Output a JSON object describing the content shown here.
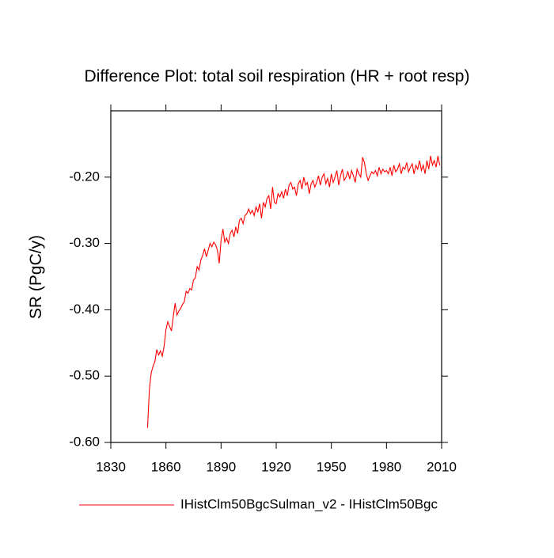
{
  "chart_data": {
    "type": "line",
    "title": "Difference Plot: total soil respiration (HR + root resp)",
    "y_label": "SR  (PgC/y)",
    "x": [
      1850,
      1851,
      1852,
      1853,
      1854,
      1855,
      1856,
      1857,
      1858,
      1859,
      1860,
      1861,
      1862,
      1863,
      1864,
      1865,
      1866,
      1867,
      1868,
      1869,
      1870,
      1871,
      1872,
      1873,
      1874,
      1875,
      1876,
      1877,
      1878,
      1879,
      1880,
      1881,
      1882,
      1883,
      1884,
      1885,
      1886,
      1887,
      1888,
      1889,
      1890,
      1891,
      1892,
      1893,
      1894,
      1895,
      1896,
      1897,
      1898,
      1899,
      1900,
      1901,
      1902,
      1903,
      1904,
      1905,
      1906,
      1907,
      1908,
      1909,
      1910,
      1911,
      1912,
      1913,
      1914,
      1915,
      1916,
      1917,
      1918,
      1919,
      1920,
      1921,
      1922,
      1923,
      1924,
      1925,
      1926,
      1927,
      1928,
      1929,
      1930,
      1931,
      1932,
      1933,
      1934,
      1935,
      1936,
      1937,
      1938,
      1939,
      1940,
      1941,
      1942,
      1943,
      1944,
      1945,
      1946,
      1947,
      1948,
      1949,
      1950,
      1951,
      1952,
      1953,
      1954,
      1955,
      1956,
      1957,
      1958,
      1959,
      1960,
      1961,
      1962,
      1963,
      1964,
      1965,
      1966,
      1967,
      1968,
      1969,
      1970,
      1971,
      1972,
      1973,
      1974,
      1975,
      1976,
      1977,
      1978,
      1979,
      1980,
      1981,
      1982,
      1983,
      1984,
      1985,
      1986,
      1987,
      1988,
      1989,
      1990,
      1991,
      1992,
      1993,
      1994,
      1995,
      1996,
      1997,
      1998,
      1999,
      2000,
      2001,
      2002,
      2003,
      2004,
      2005,
      2006,
      2007,
      2008,
      2009
    ],
    "series": [
      {
        "name": "IHistClm50BgcSulman_v2 - IHistClm50Bgc",
        "color": "#ff0000",
        "values": [
          -0.578,
          -0.52,
          -0.495,
          -0.485,
          -0.478,
          -0.46,
          -0.468,
          -0.462,
          -0.47,
          -0.455,
          -0.43,
          -0.418,
          -0.425,
          -0.432,
          -0.41,
          -0.39,
          -0.408,
          -0.402,
          -0.398,
          -0.392,
          -0.388,
          -0.372,
          -0.375,
          -0.368,
          -0.37,
          -0.355,
          -0.352,
          -0.335,
          -0.34,
          -0.325,
          -0.318,
          -0.308,
          -0.32,
          -0.31,
          -0.3,
          -0.305,
          -0.298,
          -0.302,
          -0.31,
          -0.33,
          -0.295,
          -0.278,
          -0.298,
          -0.292,
          -0.3,
          -0.285,
          -0.28,
          -0.29,
          -0.275,
          -0.285,
          -0.265,
          -0.262,
          -0.27,
          -0.258,
          -0.255,
          -0.248,
          -0.255,
          -0.25,
          -0.258,
          -0.245,
          -0.252,
          -0.24,
          -0.262,
          -0.238,
          -0.245,
          -0.232,
          -0.228,
          -0.248,
          -0.215,
          -0.238,
          -0.24,
          -0.225,
          -0.23,
          -0.222,
          -0.232,
          -0.218,
          -0.228,
          -0.212,
          -0.208,
          -0.218,
          -0.215,
          -0.228,
          -0.21,
          -0.205,
          -0.218,
          -0.2,
          -0.212,
          -0.208,
          -0.225,
          -0.21,
          -0.205,
          -0.215,
          -0.208,
          -0.198,
          -0.212,
          -0.2,
          -0.195,
          -0.21,
          -0.202,
          -0.215,
          -0.195,
          -0.208,
          -0.2,
          -0.19,
          -0.212,
          -0.198,
          -0.188,
          -0.205,
          -0.2,
          -0.192,
          -0.203,
          -0.19,
          -0.198,
          -0.208,
          -0.188,
          -0.195,
          -0.2,
          -0.17,
          -0.178,
          -0.195,
          -0.205,
          -0.198,
          -0.192,
          -0.195,
          -0.19,
          -0.198,
          -0.185,
          -0.195,
          -0.188,
          -0.192,
          -0.19,
          -0.195,
          -0.185,
          -0.198,
          -0.182,
          -0.192,
          -0.188,
          -0.18,
          -0.195,
          -0.185,
          -0.188,
          -0.178,
          -0.192,
          -0.185,
          -0.18,
          -0.195,
          -0.182,
          -0.188,
          -0.175,
          -0.19,
          -0.182,
          -0.195,
          -0.175,
          -0.188,
          -0.168,
          -0.182,
          -0.175,
          -0.185,
          -0.168,
          -0.182
        ]
      }
    ],
    "xlim": [
      1830,
      2010
    ],
    "xticks": [
      1830,
      1860,
      1890,
      1920,
      1950,
      1980,
      2010
    ],
    "ylim": [
      -0.6,
      -0.1
    ],
    "yticks": [
      {
        "value": -0.6,
        "label": "-0.60"
      },
      {
        "value": -0.5,
        "label": "-0.50"
      },
      {
        "value": -0.4,
        "label": "-0.40"
      },
      {
        "value": -0.3,
        "label": "-0.30"
      },
      {
        "value": -0.2,
        "label": "-0.20"
      }
    ],
    "grid": false
  }
}
